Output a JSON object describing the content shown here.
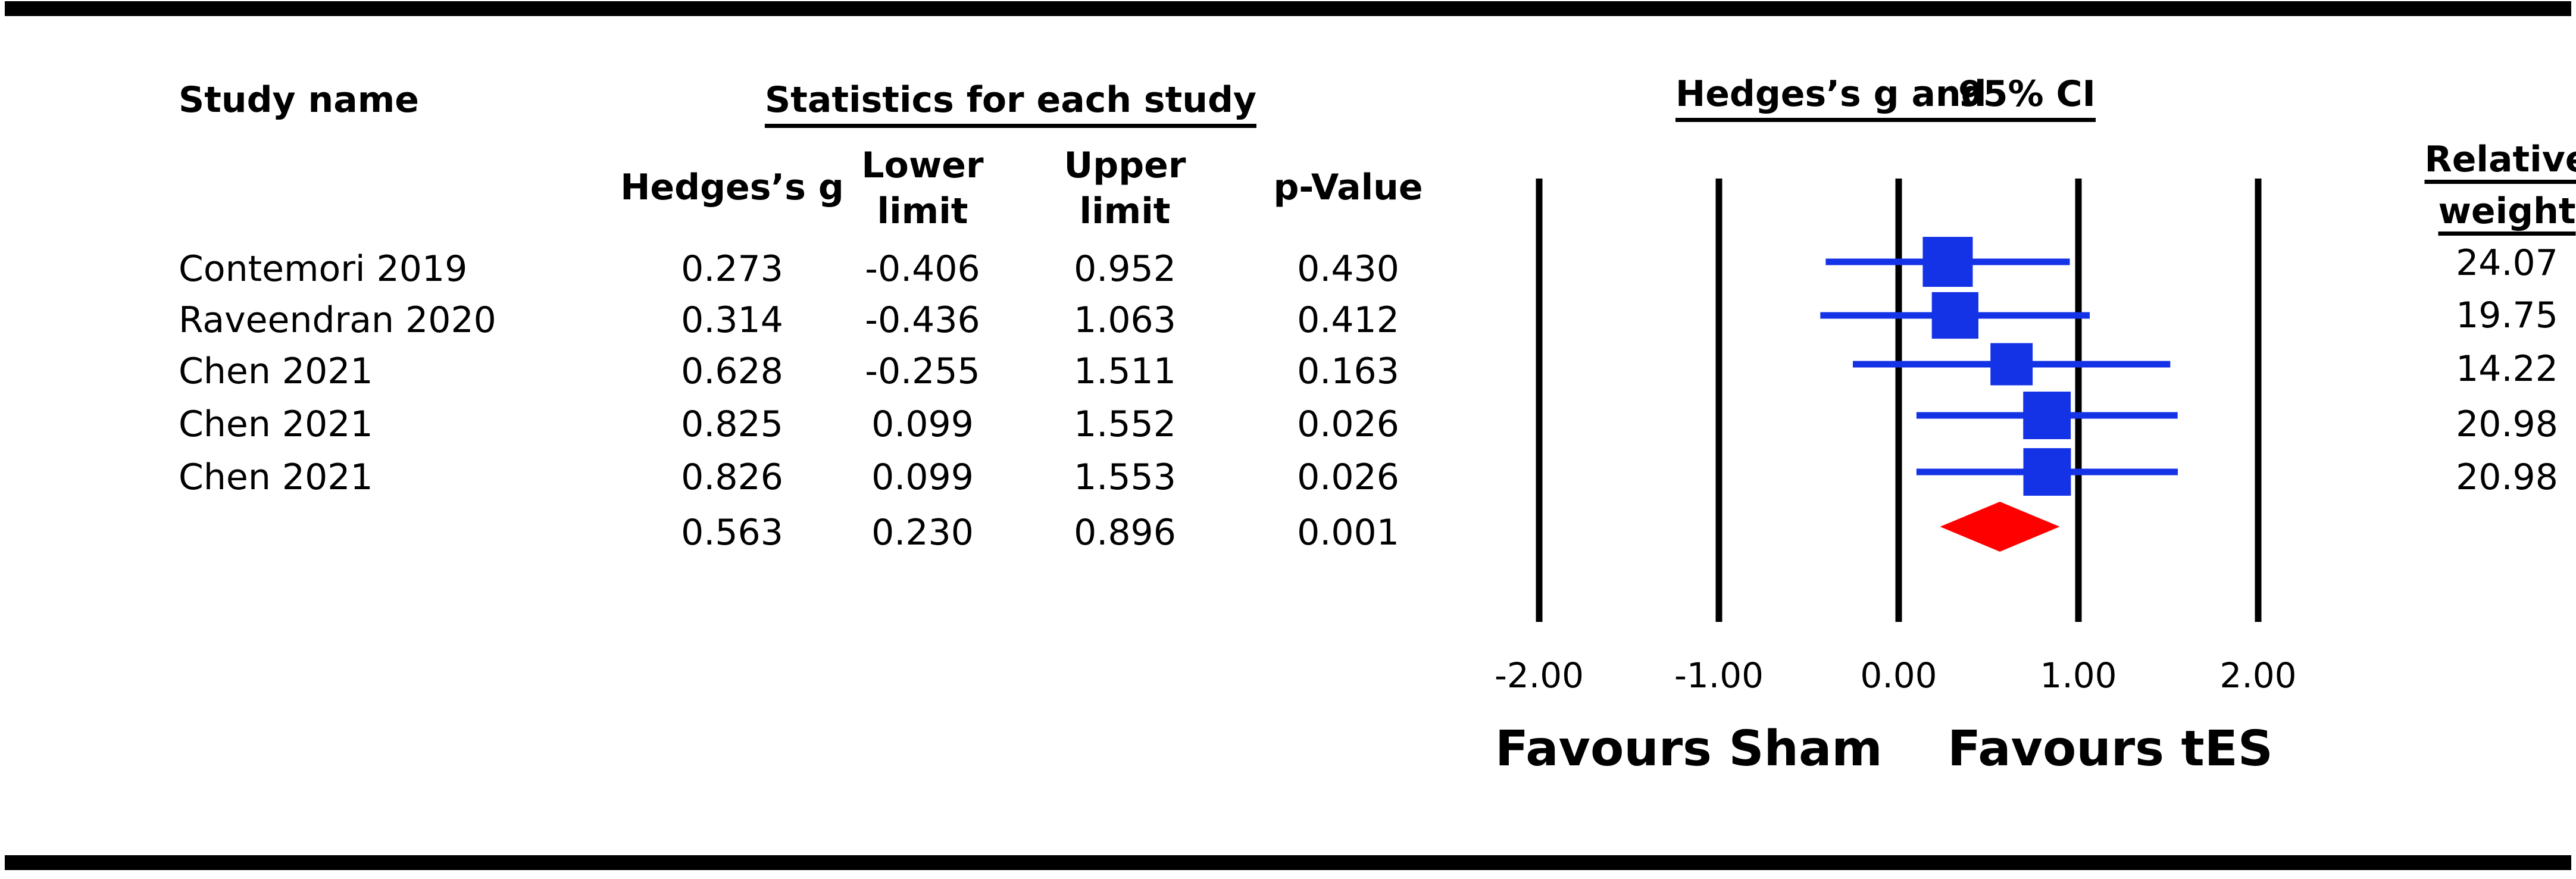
{
  "table": {
    "col_study": "Study name",
    "stats_header": "Statistics for each study",
    "col_g": "Hedges’s g",
    "col_lower_1": "Lower",
    "col_lower_2": "limit",
    "col_upper_1": "Upper",
    "col_upper_2": "limit",
    "col_p": "p-Value",
    "plot_header_1": "Hedges’s g and",
    "plot_header_2": "95% CI",
    "weight_header_1": "Relative",
    "weight_header_2": "weight",
    "rows": [
      {
        "study": "Contemori 2019",
        "g": "0.273",
        "lower": "-0.406",
        "upper": "0.952",
        "p": "0.430",
        "weight": "24.07"
      },
      {
        "study": "Raveendran 2020",
        "g": "0.314",
        "lower": "-0.436",
        "upper": "1.063",
        "p": "0.412",
        "weight": "19.75"
      },
      {
        "study": "Chen 2021",
        "g": "0.628",
        "lower": "-0.255",
        "upper": "1.511",
        "p": "0.163",
        "weight": "14.22"
      },
      {
        "study": "Chen 2021",
        "g": "0.825",
        "lower": "0.099",
        "upper": "1.552",
        "p": "0.026",
        "weight": "20.98"
      },
      {
        "study": "Chen 2021",
        "g": "0.826",
        "lower": "0.099",
        "upper": "1.553",
        "p": "0.026",
        "weight": "20.98"
      }
    ],
    "summary": {
      "g": "0.563",
      "lower": "0.230",
      "upper": "0.896",
      "p": "0.001"
    }
  },
  "chart_data": {
    "type": "forest",
    "xlim": [
      -2,
      2
    ],
    "xticks": [
      "-2.00",
      "-1.00",
      "0.00",
      "1.00",
      "2.00"
    ],
    "favours_left": "Favours Sham",
    "favours_right": "Favours tES",
    "studies": [
      {
        "g": 0.273,
        "lower": -0.406,
        "upper": 0.952,
        "weight": 24.07
      },
      {
        "g": 0.314,
        "lower": -0.436,
        "upper": 1.063,
        "weight": 19.75
      },
      {
        "g": 0.628,
        "lower": -0.255,
        "upper": 1.511,
        "weight": 14.22
      },
      {
        "g": 0.825,
        "lower": 0.099,
        "upper": 1.552,
        "weight": 20.98
      },
      {
        "g": 0.826,
        "lower": 0.099,
        "upper": 1.553,
        "weight": 20.98
      }
    ],
    "summary": {
      "g": 0.563,
      "lower": 0.23,
      "upper": 0.896
    },
    "colors": {
      "study": "#1432e6",
      "summary": "#ff0000",
      "reference": "#000000"
    }
  }
}
